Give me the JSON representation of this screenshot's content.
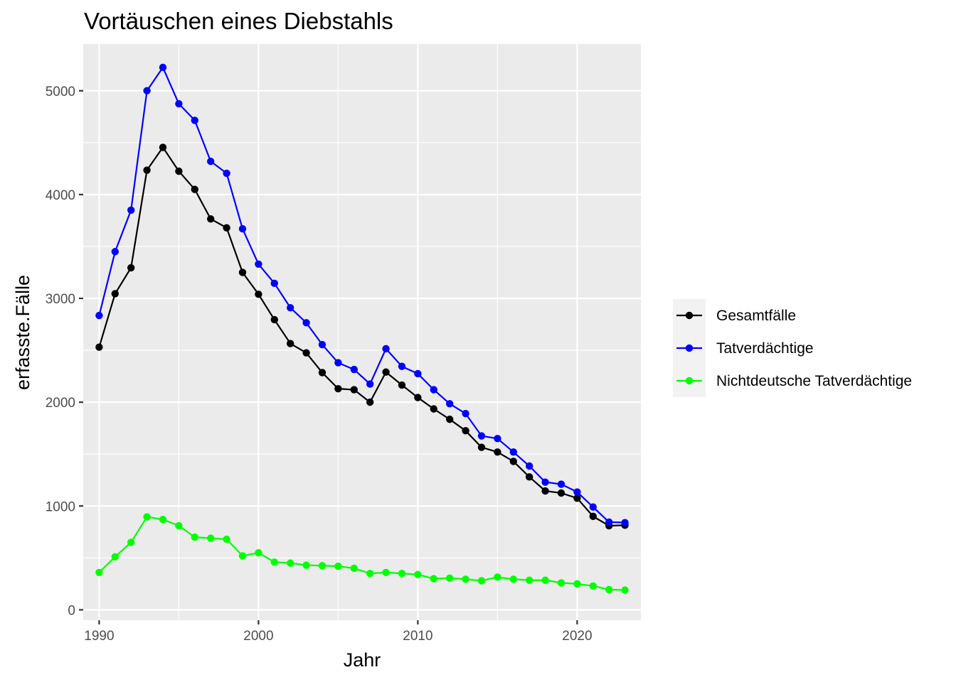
{
  "chart_data": {
    "type": "line",
    "title": "Vortäuschen eines Diebstahls",
    "xlabel": "Jahr",
    "ylabel": "erfasste.Fälle",
    "xlim": [
      1989,
      2024
    ],
    "ylim": [
      -100,
      5450
    ],
    "x_ticks": [
      1990,
      2000,
      2010,
      2020
    ],
    "y_ticks": [
      0,
      1000,
      2000,
      3000,
      4000,
      5000
    ],
    "grid": true,
    "legend_position": "right",
    "x": [
      1990,
      1991,
      1992,
      1993,
      1994,
      1995,
      1996,
      1997,
      1998,
      1999,
      2000,
      2001,
      2002,
      2003,
      2004,
      2005,
      2006,
      2007,
      2008,
      2009,
      2010,
      2011,
      2012,
      2013,
      2014,
      2015,
      2016,
      2017,
      2018,
      2019,
      2020,
      2021,
      2022,
      2023
    ],
    "series": [
      {
        "name": "Gesamtfälle",
        "color": "#000000",
        "values": [
          2530,
          3045,
          3295,
          4235,
          4455,
          4225,
          4050,
          3765,
          3680,
          3250,
          3040,
          2795,
          2565,
          2475,
          2285,
          2130,
          2120,
          2000,
          2290,
          2165,
          2045,
          1935,
          1835,
          1725,
          1565,
          1520,
          1430,
          1280,
          1145,
          1125,
          1075,
          900,
          810,
          815
        ]
      },
      {
        "name": "Tatverdächtige",
        "color": "#0000ff",
        "values": [
          2835,
          3450,
          3850,
          5000,
          5225,
          4875,
          4715,
          4320,
          4205,
          3670,
          3330,
          3145,
          2910,
          2765,
          2555,
          2380,
          2315,
          2175,
          2515,
          2345,
          2275,
          2120,
          1985,
          1890,
          1675,
          1650,
          1520,
          1385,
          1230,
          1210,
          1135,
          990,
          845,
          840
        ]
      },
      {
        "name": "Nichtdeutsche Tatverdächtige",
        "color": "#00ff00",
        "values": [
          360,
          510,
          650,
          895,
          870,
          810,
          700,
          690,
          680,
          520,
          550,
          460,
          450,
          430,
          425,
          420,
          400,
          350,
          360,
          350,
          340,
          300,
          305,
          295,
          280,
          315,
          295,
          285,
          285,
          260,
          250,
          230,
          195,
          190
        ]
      }
    ]
  }
}
